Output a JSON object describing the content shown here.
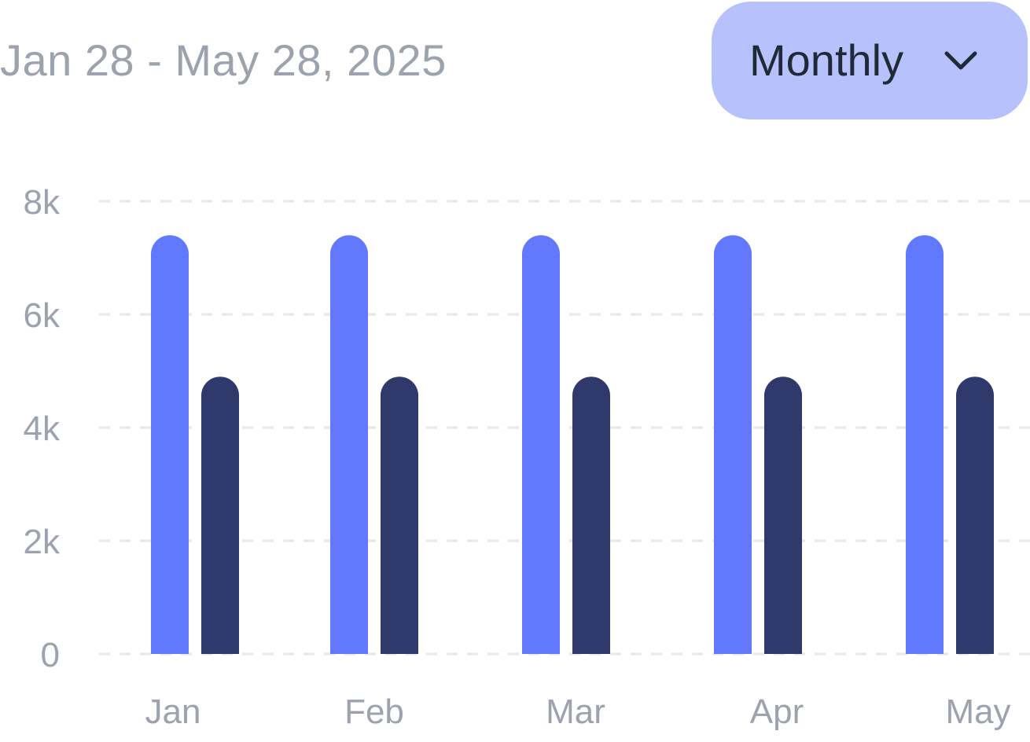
{
  "header": {
    "date_range": "Jan 28 - May 28, 2025",
    "period_select": {
      "label": "Monthly",
      "icon": "chevron-down-icon"
    }
  },
  "colors": {
    "series_1": "#6279fd",
    "series_2": "#30396c",
    "select_bg": "#b7c2fd",
    "grid": "#e5e7eb",
    "tick_text": "#9ca3af"
  },
  "chart_data": {
    "type": "bar",
    "categories": [
      "Jan",
      "Feb",
      "Mar",
      "Apr",
      "May"
    ],
    "series": [
      {
        "values": [
          7400,
          7400,
          7400,
          7400,
          7400
        ]
      },
      {
        "values": [
          4900,
          4900,
          4900,
          4900,
          4900
        ]
      }
    ],
    "y_ticks": [
      "0",
      "2k",
      "4k",
      "6k",
      "8k"
    ],
    "y_tick_values": [
      0,
      2000,
      4000,
      6000,
      8000
    ],
    "ylim": [
      0,
      8000
    ],
    "grid": true,
    "legend": "none"
  }
}
